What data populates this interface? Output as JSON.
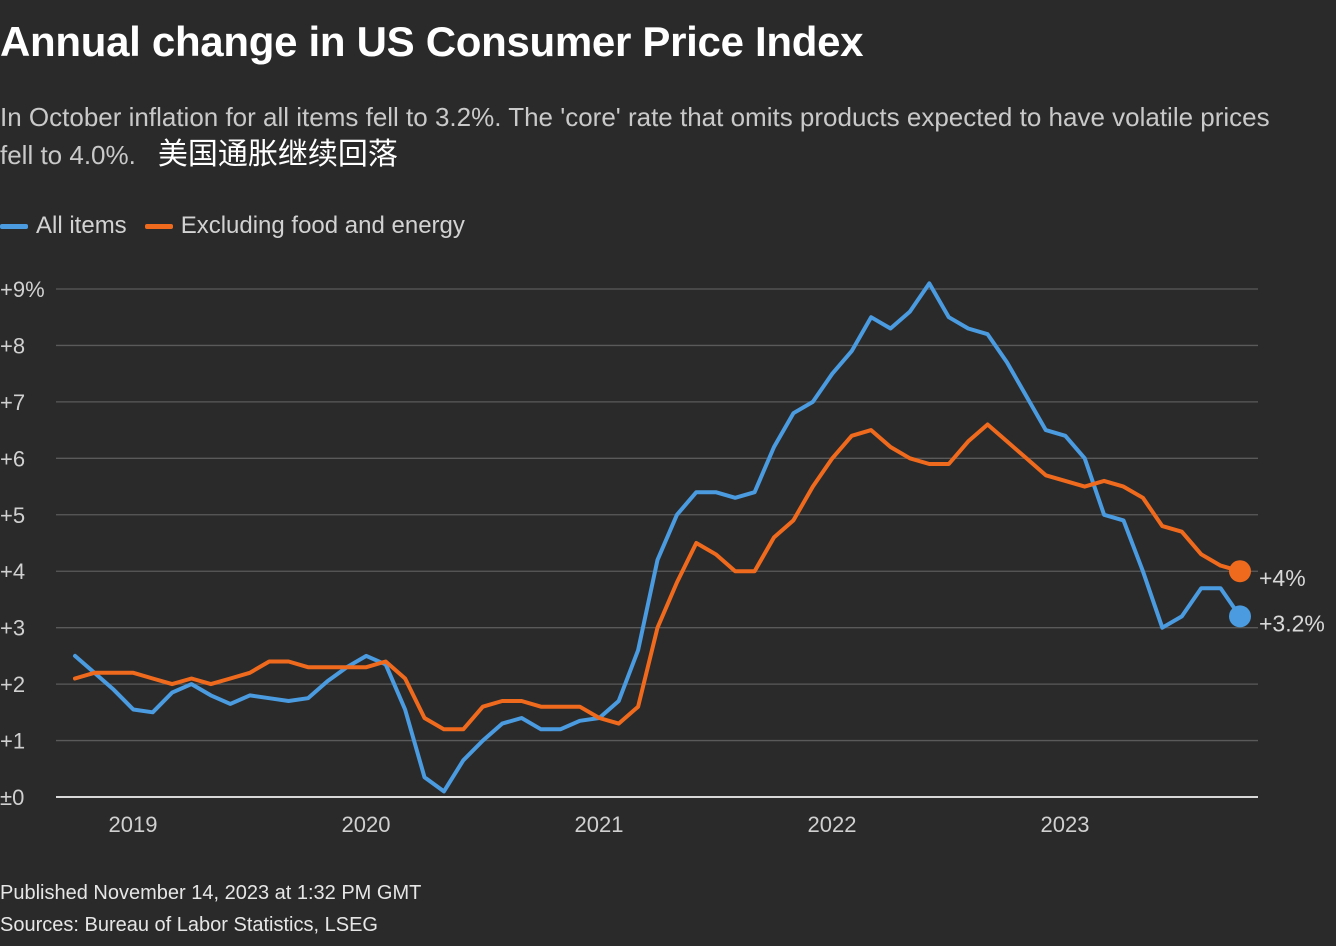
{
  "header": {
    "title": "Annual change in US Consumer Price Index",
    "subtitle_line1": "In October inflation for all items fell to 3.2%. The 'core' rate that omits products expected to have volatile prices",
    "subtitle_line2": "fell to 4.0%.",
    "annotation": "美国通胀继续回落"
  },
  "footer": {
    "published": "Published November 14, 2023 at 1:32 PM GMT",
    "sources": "Sources: Bureau of Labor Statistics, LSEG"
  },
  "colors": {
    "background": "#2a2a2a",
    "grid": "#5a5a5a",
    "axis": "#d8d8d8",
    "all_items": "#4a9be0",
    "core": "#f06a1e"
  },
  "chart_data": {
    "type": "line",
    "title": "Annual change in US Consumer Price Index",
    "xlabel": "",
    "ylabel": "",
    "ylim": [
      0,
      9
    ],
    "y_ticks": [
      0,
      1,
      2,
      3,
      4,
      5,
      6,
      7,
      8,
      9
    ],
    "y_tick_labels": [
      "±0",
      "+1",
      "+2",
      "+3",
      "+4",
      "+5",
      "+6",
      "+7",
      "+8",
      "+9%"
    ],
    "x_ticks": [
      2019,
      2020,
      2021,
      2022,
      2023
    ],
    "x_tick_labels": [
      "2019",
      "2020",
      "2021",
      "2022",
      "2023"
    ],
    "x_start": "2018-10",
    "x_end": "2023-10",
    "grid": true,
    "legend_position": "top-left",
    "series": [
      {
        "name": "All items",
        "color": "#4a9be0",
        "end_label": "+3.2%",
        "values": [
          2.5,
          2.2,
          1.9,
          1.55,
          1.5,
          1.85,
          2.0,
          1.8,
          1.65,
          1.8,
          1.75,
          1.7,
          1.75,
          2.05,
          2.3,
          2.5,
          2.35,
          1.55,
          0.35,
          0.1,
          0.65,
          1.0,
          1.3,
          1.4,
          1.2,
          1.2,
          1.35,
          1.4,
          1.7,
          2.6,
          4.2,
          5.0,
          5.4,
          5.4,
          5.3,
          5.4,
          6.2,
          6.8,
          7.0,
          7.5,
          7.9,
          8.5,
          8.3,
          8.6,
          9.1,
          8.5,
          8.3,
          8.2,
          7.7,
          7.1,
          6.5,
          6.4,
          6.0,
          5.0,
          4.9,
          4.0,
          3.0,
          3.2,
          3.7,
          3.7,
          3.2
        ]
      },
      {
        "name": "Excluding food and energy",
        "color": "#f06a1e",
        "end_label": "+4%",
        "values": [
          2.1,
          2.2,
          2.2,
          2.2,
          2.1,
          2.0,
          2.1,
          2.0,
          2.1,
          2.2,
          2.4,
          2.4,
          2.3,
          2.3,
          2.3,
          2.3,
          2.4,
          2.1,
          1.4,
          1.2,
          1.2,
          1.6,
          1.7,
          1.7,
          1.6,
          1.6,
          1.6,
          1.4,
          1.3,
          1.6,
          3.0,
          3.8,
          4.5,
          4.3,
          4.0,
          4.0,
          4.6,
          4.9,
          5.5,
          6.0,
          6.4,
          6.5,
          6.2,
          6.0,
          5.9,
          5.9,
          6.3,
          6.6,
          6.3,
          6.0,
          5.7,
          5.6,
          5.5,
          5.6,
          5.5,
          5.3,
          4.8,
          4.7,
          4.3,
          4.1,
          4.0
        ]
      }
    ]
  }
}
